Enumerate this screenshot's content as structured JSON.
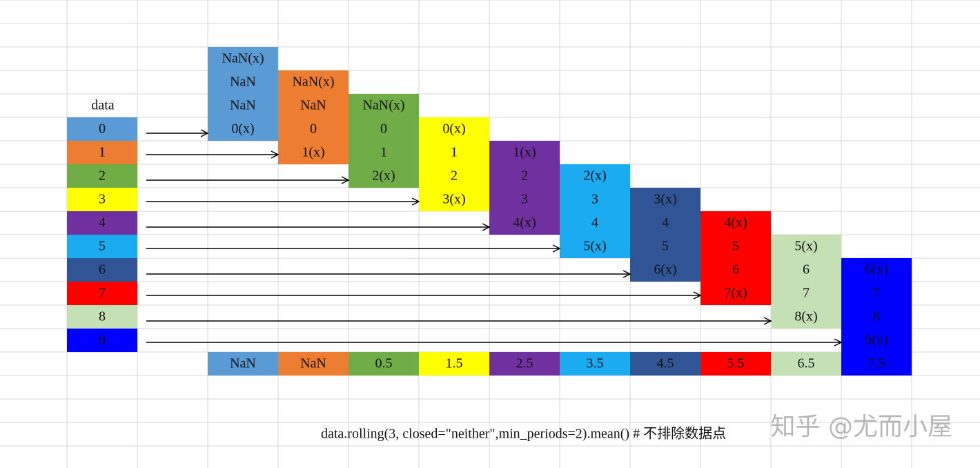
{
  "data_label": "data",
  "data": [
    "0",
    "1",
    "2",
    "3",
    "4",
    "5",
    "6",
    "7",
    "8",
    "9"
  ],
  "colors": [
    "#5b9bd5",
    "#ed7d31",
    "#70ad47",
    "#ffff00",
    "#7030a0",
    "#1aabf0",
    "#2f5597",
    "#ff0000",
    "#c5e0b4",
    "#0000ff"
  ],
  "windows": [
    [
      "NaN(x)",
      "NaN",
      "NaN",
      "0(x)"
    ],
    [
      "NaN(x)",
      "NaN",
      "0",
      "1(x)"
    ],
    [
      "NaN(x)",
      "0",
      "1",
      "2(x)"
    ],
    [
      "0(x)",
      "1",
      "2",
      "3(x)"
    ],
    [
      "1(x)",
      "2",
      "3",
      "4(x)"
    ],
    [
      "2(x)",
      "3",
      "4",
      "5(x)"
    ],
    [
      "3(x)",
      "4",
      "5",
      "6(x)"
    ],
    [
      "4(x)",
      "5",
      "6",
      "7(x)"
    ],
    [
      "5(x)",
      "6",
      "7",
      "8(x)"
    ],
    [
      "6(x)",
      "7",
      "8",
      "9(x)"
    ]
  ],
  "results": [
    "NaN",
    "NaN",
    "0.5",
    "1.5",
    "2.5",
    "3.5",
    "4.5",
    "5.5",
    "6.5",
    "7.5"
  ],
  "caption": "data.rolling(3, closed=\"neither\",min_periods=2).mean()   # 不排除数据点",
  "watermark": "知乎 @尤而小屋"
}
